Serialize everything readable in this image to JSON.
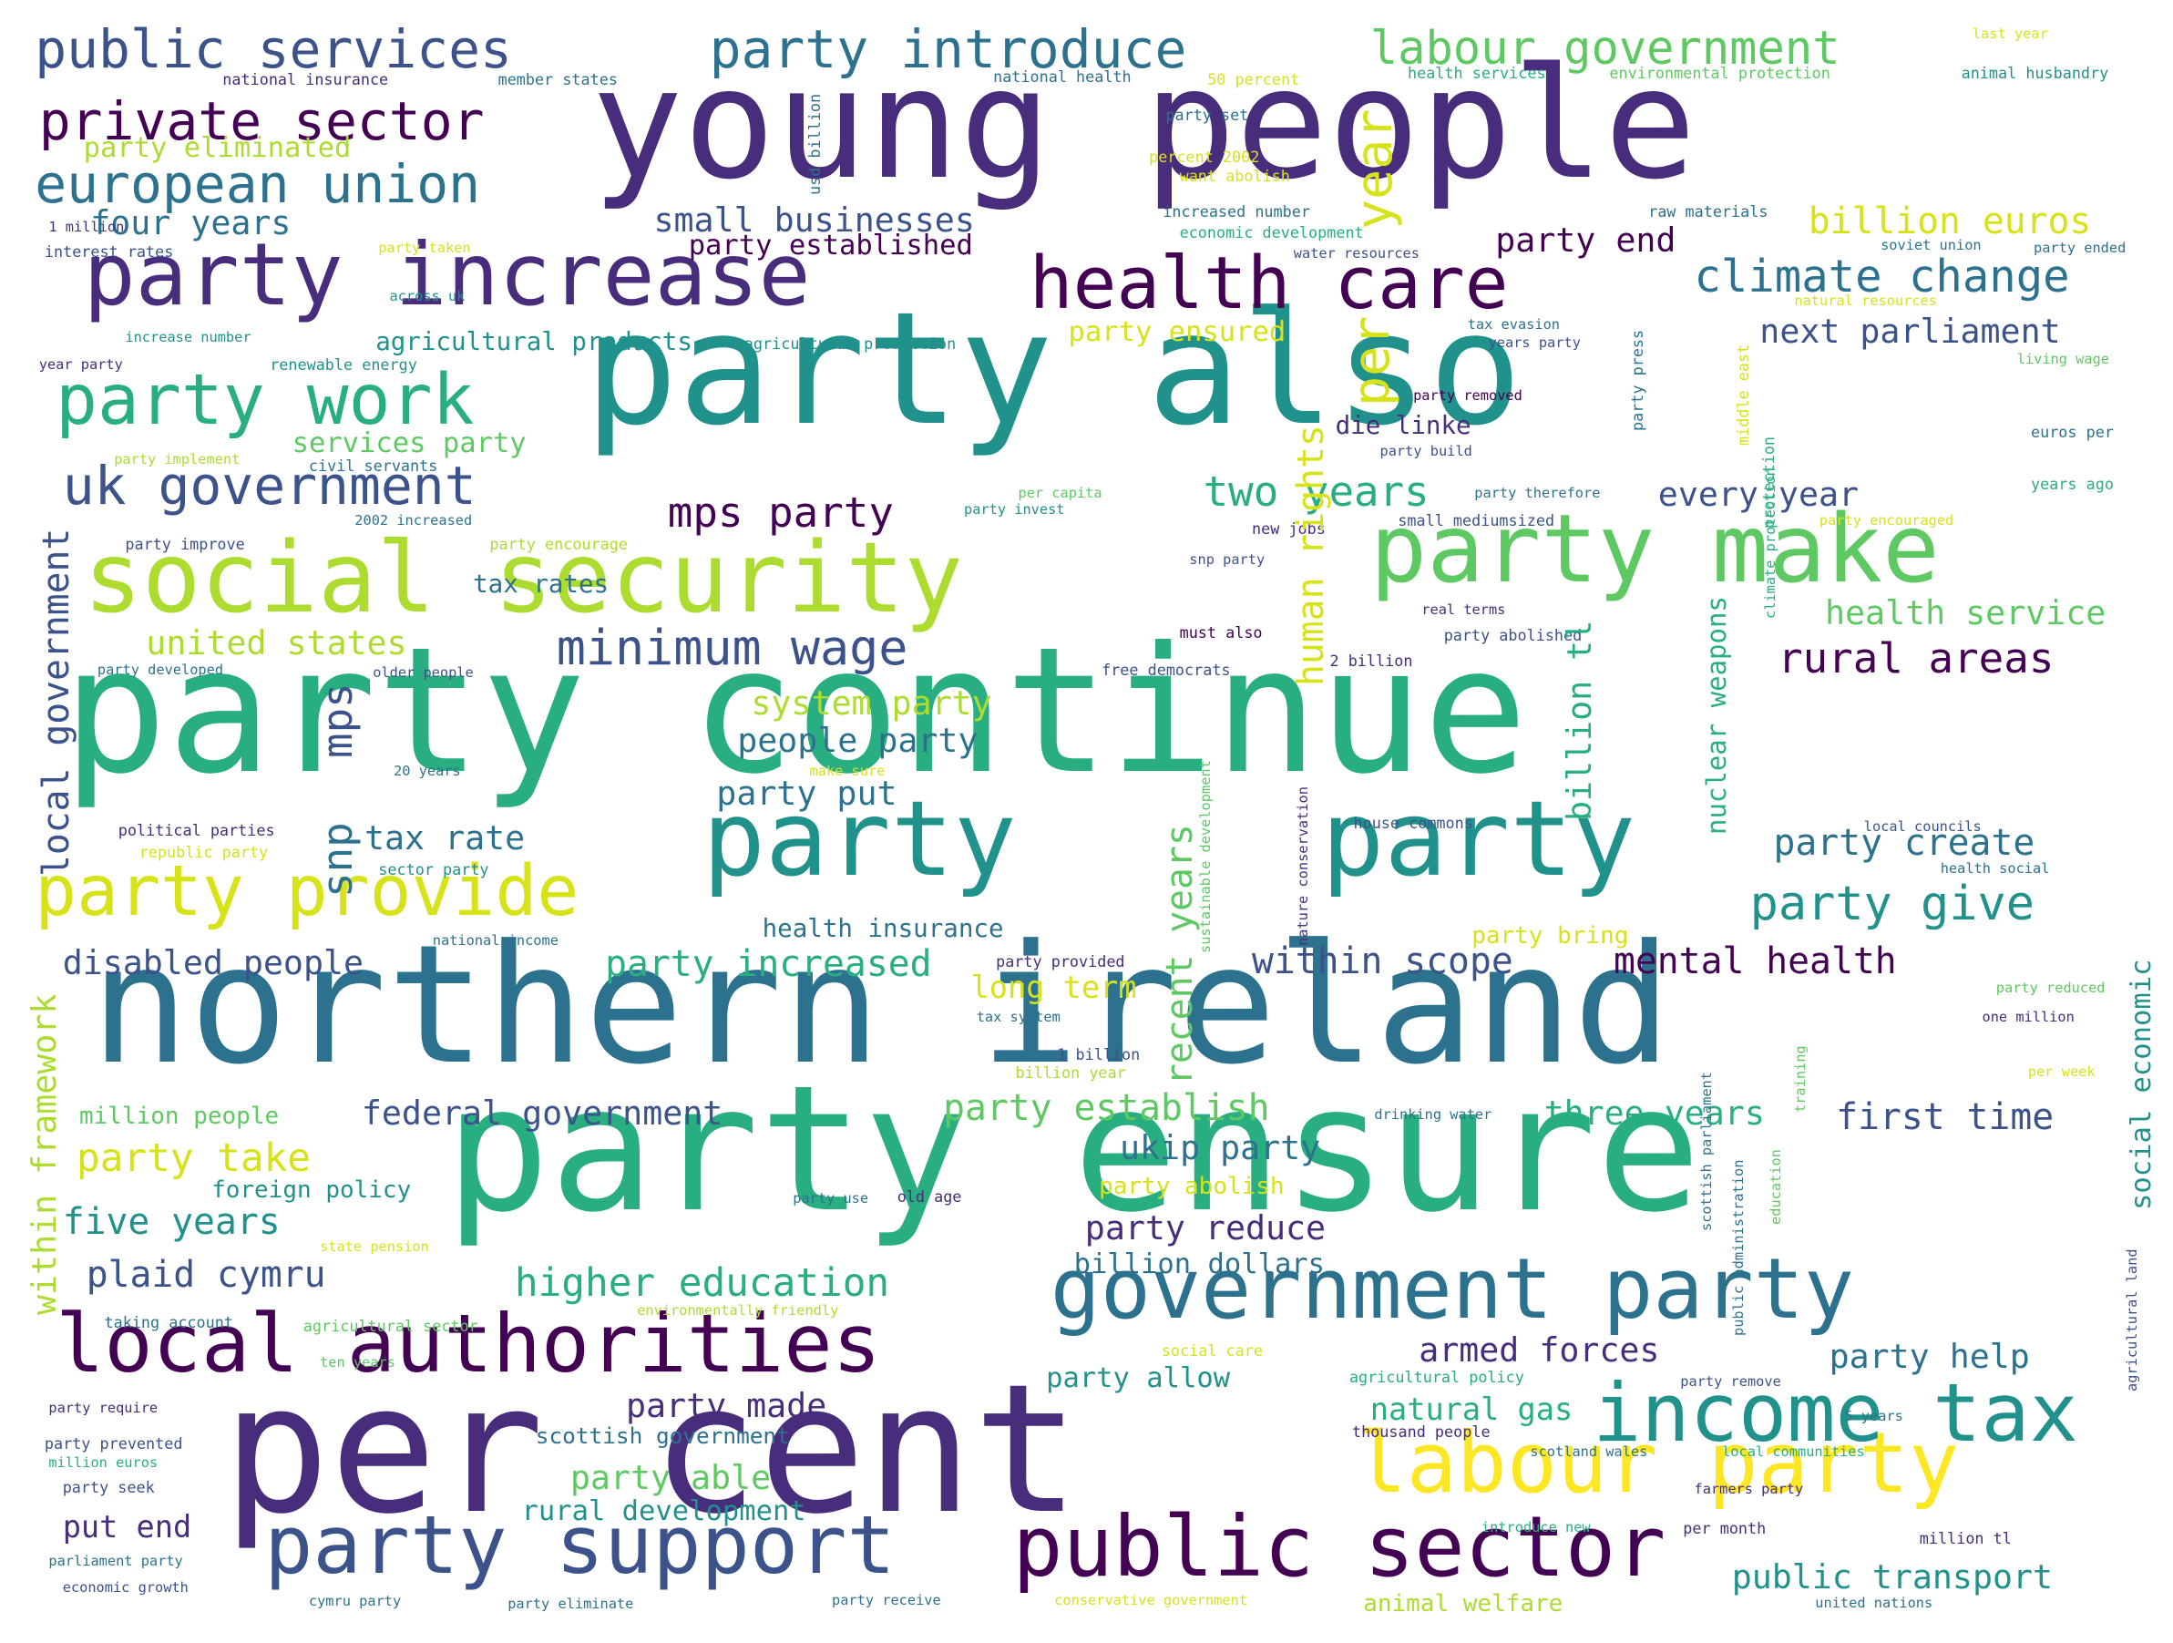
{
  "palette": {
    "p0": "#440154",
    "p1": "#472d7b",
    "p2": "#3b528b",
    "p3": "#2c728e",
    "p4": "#21918c",
    "p5": "#28ae80",
    "p6": "#5ec962",
    "p7": "#addc30",
    "p8": "#d8e219",
    "p9": "#fde725"
  },
  "words": [
    {
      "text": "young people"
    },
    {
      "text": "party also"
    },
    {
      "text": "party continue"
    },
    {
      "text": "northern ireland"
    },
    {
      "text": "party ensure"
    },
    {
      "text": "per cent"
    },
    {
      "text": "social security"
    },
    {
      "text": "party make"
    },
    {
      "text": "party increase"
    },
    {
      "text": "party"
    },
    {
      "text": "party"
    },
    {
      "text": "government party"
    },
    {
      "text": "local authorities"
    },
    {
      "text": "labour party"
    },
    {
      "text": "party support"
    },
    {
      "text": "public sector"
    },
    {
      "text": "income tax"
    },
    {
      "text": "health care"
    },
    {
      "text": "party work"
    },
    {
      "text": "party provide"
    },
    {
      "text": "public services"
    },
    {
      "text": "party introduce"
    },
    {
      "text": "labour government"
    },
    {
      "text": "private sector"
    },
    {
      "text": "european union"
    },
    {
      "text": "uk government"
    },
    {
      "text": "minimum wage"
    },
    {
      "text": "climate change"
    },
    {
      "text": "mps party"
    },
    {
      "text": "two years"
    },
    {
      "text": "party give"
    },
    {
      "text": "party create"
    },
    {
      "text": "within scope"
    },
    {
      "text": "mental health"
    },
    {
      "text": "higher education"
    },
    {
      "text": "rural areas"
    },
    {
      "text": "billion euros"
    },
    {
      "text": "next parliament"
    },
    {
      "text": "health service"
    },
    {
      "text": "small businesses"
    },
    {
      "text": "four years"
    },
    {
      "text": "party end"
    },
    {
      "text": "party eliminated"
    },
    {
      "text": "party established"
    },
    {
      "text": "united states"
    },
    {
      "text": "party establish"
    },
    {
      "text": "party increased"
    },
    {
      "text": "disabled people"
    },
    {
      "text": "federal government"
    },
    {
      "text": "three years"
    },
    {
      "text": "first time"
    },
    {
      "text": "five years"
    },
    {
      "text": "plaid cymru"
    },
    {
      "text": "party take"
    },
    {
      "text": "ukip party"
    },
    {
      "text": "party reduce"
    },
    {
      "text": "armed forces"
    },
    {
      "text": "party help"
    },
    {
      "text": "natural gas"
    },
    {
      "text": "party made"
    },
    {
      "text": "party able"
    },
    {
      "text": "public transport"
    },
    {
      "text": "put end"
    },
    {
      "text": "rural development"
    },
    {
      "text": "every year"
    },
    {
      "text": "agricultural products"
    },
    {
      "text": "system party"
    },
    {
      "text": "people party"
    },
    {
      "text": "party put"
    },
    {
      "text": "tax rate"
    },
    {
      "text": "health insurance"
    },
    {
      "text": "long term"
    },
    {
      "text": "die linke"
    },
    {
      "text": "services party"
    },
    {
      "text": "tax rates"
    },
    {
      "text": "party ensured"
    },
    {
      "text": "foreign policy"
    },
    {
      "text": "million people"
    },
    {
      "text": "billion dollars"
    },
    {
      "text": "scottish government"
    },
    {
      "text": "party allow"
    },
    {
      "text": "party abolish"
    },
    {
      "text": "party bring"
    },
    {
      "text": "animal welfare"
    },
    {
      "text": "party set"
    },
    {
      "text": "national insurance"
    },
    {
      "text": "member states"
    },
    {
      "text": "national health"
    },
    {
      "text": "50 percent"
    },
    {
      "text": "health services"
    },
    {
      "text": "environmental protection"
    },
    {
      "text": "animal husbandry"
    },
    {
      "text": "last year"
    },
    {
      "text": "percent 2002"
    },
    {
      "text": "want abolish"
    },
    {
      "text": "increased number"
    },
    {
      "text": "raw materials"
    },
    {
      "text": "economic development"
    },
    {
      "text": "1 million"
    },
    {
      "text": "interest rates"
    },
    {
      "text": "party taken"
    },
    {
      "text": "water resources"
    },
    {
      "text": "soviet union"
    },
    {
      "text": "party ended"
    },
    {
      "text": "across uk"
    },
    {
      "text": "natural resources"
    },
    {
      "text": "increase number"
    },
    {
      "text": "agricultural production"
    },
    {
      "text": "tax evasion"
    },
    {
      "text": "years party"
    },
    {
      "text": "year party"
    },
    {
      "text": "renewable energy"
    },
    {
      "text": "living wage"
    },
    {
      "text": "party removed"
    },
    {
      "text": "party build"
    },
    {
      "text": "euros per"
    },
    {
      "text": "party implement"
    },
    {
      "text": "civil servants"
    },
    {
      "text": "per capita"
    },
    {
      "text": "party invest"
    },
    {
      "text": "party therefore"
    },
    {
      "text": "small mediumsized"
    },
    {
      "text": "years ago"
    },
    {
      "text": "2002 increased"
    },
    {
      "text": "new jobs"
    },
    {
      "text": "party encouraged"
    },
    {
      "text": "party improve"
    },
    {
      "text": "party encourage"
    },
    {
      "text": "snp party"
    },
    {
      "text": "real terms"
    },
    {
      "text": "must also"
    },
    {
      "text": "party abolished"
    },
    {
      "text": "party developed"
    },
    {
      "text": "older people"
    },
    {
      "text": "free democrats"
    },
    {
      "text": "2 billion"
    },
    {
      "text": "make sure"
    },
    {
      "text": "20 years"
    },
    {
      "text": "political parties"
    },
    {
      "text": "republic party"
    },
    {
      "text": "sector party"
    },
    {
      "text": "house commons"
    },
    {
      "text": "local councils"
    },
    {
      "text": "health social"
    },
    {
      "text": "national income"
    },
    {
      "text": "party provided"
    },
    {
      "text": "tax system"
    },
    {
      "text": "1 billion"
    },
    {
      "text": "billion year"
    },
    {
      "text": "drinking water"
    },
    {
      "text": "party reduced"
    },
    {
      "text": "one million"
    },
    {
      "text": "per week"
    },
    {
      "text": "party use"
    },
    {
      "text": "old age"
    },
    {
      "text": "state pension"
    },
    {
      "text": "taking account"
    },
    {
      "text": "agricultural sector"
    },
    {
      "text": "environmentally friendly"
    },
    {
      "text": "ten years"
    },
    {
      "text": "social care"
    },
    {
      "text": "agricultural policy"
    },
    {
      "text": "party remove"
    },
    {
      "text": "party require"
    },
    {
      "text": "party prevented"
    },
    {
      "text": "million euros"
    },
    {
      "text": "thousand people"
    },
    {
      "text": "5 years"
    },
    {
      "text": "scotland wales"
    },
    {
      "text": "local communities"
    },
    {
      "text": "party seek"
    },
    {
      "text": "farmers party"
    },
    {
      "text": "introduce new"
    },
    {
      "text": "per month"
    },
    {
      "text": "million tl"
    },
    {
      "text": "parliament party"
    },
    {
      "text": "economic growth"
    },
    {
      "text": "cymru party"
    },
    {
      "text": "party eliminate"
    },
    {
      "text": "party receive"
    },
    {
      "text": "conservative government"
    },
    {
      "text": "united nations"
    },
    {
      "text": "year"
    },
    {
      "text": "per"
    },
    {
      "text": "human rights"
    },
    {
      "text": "local government"
    },
    {
      "text": "mps"
    },
    {
      "text": "snp"
    },
    {
      "text": "recent years"
    },
    {
      "text": "billion tl"
    },
    {
      "text": "nuclear weapons"
    },
    {
      "text": "within framework"
    },
    {
      "text": "social economic"
    },
    {
      "text": "usd billion"
    },
    {
      "text": "party press"
    },
    {
      "text": "middle east"
    },
    {
      "text": "protection"
    },
    {
      "text": "climate protection"
    },
    {
      "text": "nature conservation"
    },
    {
      "text": "sustainable development"
    },
    {
      "text": "training"
    },
    {
      "text": "education"
    },
    {
      "text": "scottish parliament"
    },
    {
      "text": "public administration"
    },
    {
      "text": "agricultural land"
    }
  ]
}
